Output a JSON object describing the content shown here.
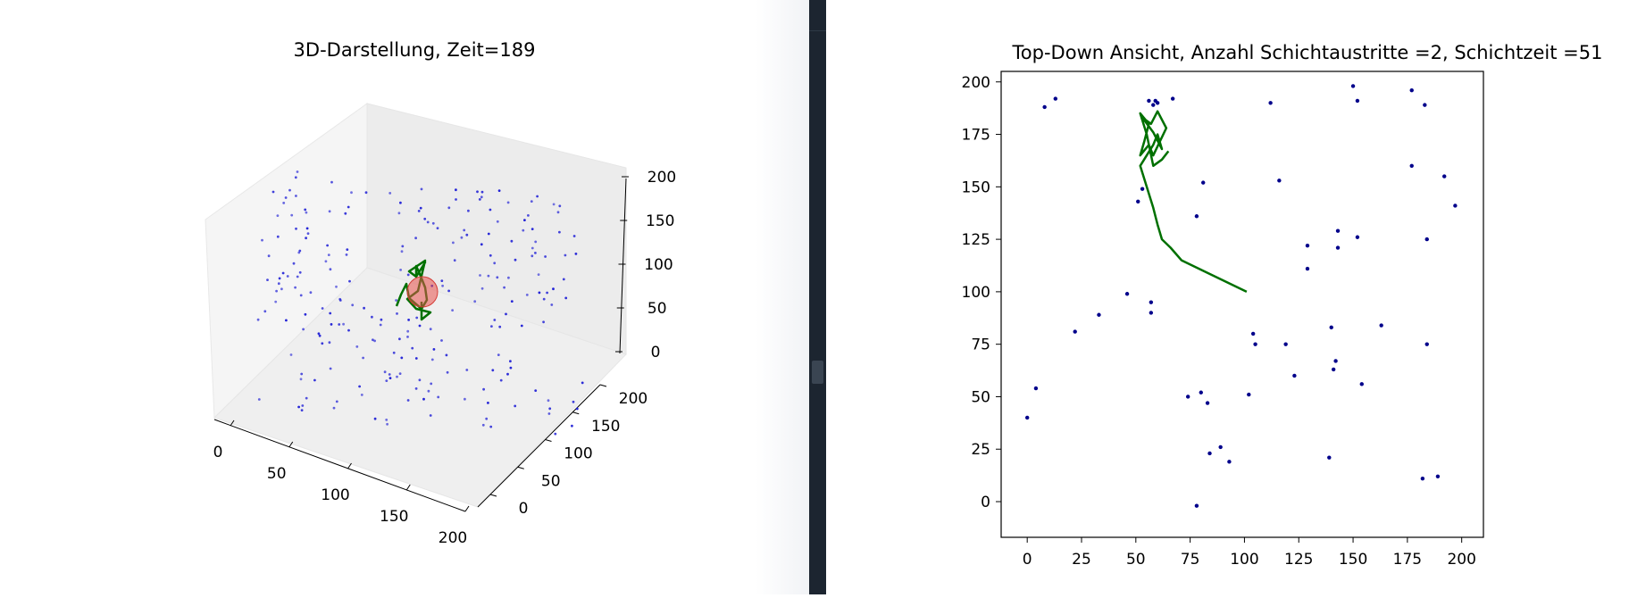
{
  "chart_data": [
    {
      "type": "scatter3d",
      "title": "3D-Darstellung, Zeit=189",
      "axes": {
        "x": {
          "range": [
            0,
            200
          ],
          "ticks": [
            0,
            50,
            100,
            150,
            200
          ]
        },
        "y": {
          "range": [
            0,
            200
          ],
          "ticks": [
            0,
            50,
            100,
            150,
            200
          ]
        },
        "z": {
          "range": [
            0,
            200
          ],
          "ticks": [
            0,
            50,
            100,
            150,
            200
          ]
        }
      },
      "colors": {
        "points": "#1f1fd6",
        "path": "#007000",
        "marker": "#e8504a"
      }
    },
    {
      "type": "scatter",
      "title": "Top-Down Ansicht, Anzahl Schichtaustritte =2, Schichtzeit =51",
      "xlim": [
        -12,
        210
      ],
      "ylim": [
        -17,
        205
      ],
      "xticks": [
        0,
        25,
        50,
        75,
        100,
        125,
        150,
        175,
        200
      ],
      "yticks": [
        0,
        25,
        50,
        75,
        100,
        125,
        150,
        175,
        200
      ],
      "points": [
        [
          8,
          188
        ],
        [
          13,
          192
        ],
        [
          56,
          191
        ],
        [
          59,
          191
        ],
        [
          58,
          189
        ],
        [
          60,
          190
        ],
        [
          67,
          192
        ],
        [
          112,
          190
        ],
        [
          150,
          198
        ],
        [
          152,
          191
        ],
        [
          177,
          196
        ],
        [
          183,
          189
        ],
        [
          116,
          153
        ],
        [
          81,
          152
        ],
        [
          177,
          160
        ],
        [
          192,
          155
        ],
        [
          197,
          141
        ],
        [
          53,
          149
        ],
        [
          51,
          143
        ],
        [
          78,
          136
        ],
        [
          143,
          129
        ],
        [
          152,
          126
        ],
        [
          184,
          125
        ],
        [
          129,
          122
        ],
        [
          143,
          121
        ],
        [
          129,
          111
        ],
        [
          46,
          99
        ],
        [
          57,
          95
        ],
        [
          57,
          90
        ],
        [
          33,
          89
        ],
        [
          22,
          81
        ],
        [
          104,
          80
        ],
        [
          140,
          83
        ],
        [
          163,
          84
        ],
        [
          105,
          75
        ],
        [
          119,
          75
        ],
        [
          184,
          75
        ],
        [
          142,
          67
        ],
        [
          141,
          63
        ],
        [
          123,
          60
        ],
        [
          154,
          56
        ],
        [
          4,
          54
        ],
        [
          80,
          52
        ],
        [
          74,
          50
        ],
        [
          102,
          51
        ],
        [
          83,
          47
        ],
        [
          0,
          40
        ],
        [
          89,
          26
        ],
        [
          84,
          23
        ],
        [
          93,
          19
        ],
        [
          139,
          21
        ],
        [
          182,
          11
        ],
        [
          189,
          12
        ],
        [
          78,
          -2
        ]
      ],
      "path": [
        [
          101,
          100
        ],
        [
          83,
          109
        ],
        [
          71,
          115
        ],
        [
          66,
          121
        ],
        [
          62,
          125
        ],
        [
          60,
          132
        ],
        [
          58,
          140
        ],
        [
          55,
          150
        ],
        [
          52,
          160
        ],
        [
          58,
          170
        ],
        [
          60,
          175
        ],
        [
          62,
          168
        ],
        [
          60,
          172
        ],
        [
          58,
          176
        ],
        [
          53,
          183
        ],
        [
          57,
          180
        ],
        [
          60,
          186
        ],
        [
          64,
          178
        ],
        [
          58,
          165
        ],
        [
          56,
          170
        ],
        [
          52,
          165
        ],
        [
          54,
          172
        ],
        [
          56,
          180
        ],
        [
          52,
          185
        ],
        [
          55,
          175
        ],
        [
          58,
          160
        ],
        [
          62,
          163
        ],
        [
          65,
          167
        ]
      ],
      "colors": {
        "points": "#00008b",
        "path": "#007000",
        "frame": "#000000"
      }
    }
  ]
}
